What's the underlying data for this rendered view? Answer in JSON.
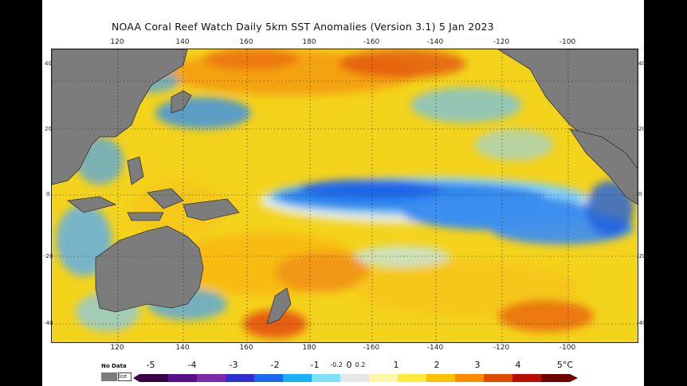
{
  "title": "NOAA Coral Reef Watch Daily 5km SST Anomalies (Version 3.1)   5 Jan 2023",
  "top_ticks": [
    "120",
    "140",
    "160",
    "180",
    "-160",
    "-140",
    "-120",
    "-100"
  ],
  "bottom_ticks": [
    "120",
    "140",
    "160",
    "180",
    "-160",
    "-140",
    "-120",
    "-100"
  ],
  "left_lat": [
    "40",
    "20",
    "0",
    "-20",
    "-40"
  ],
  "right_lat": [
    "40",
    "20",
    "0",
    "-20",
    "-40"
  ],
  "legend": {
    "nodata": "No Data",
    "ice": "Ice",
    "labels": [
      "-5",
      "-4",
      "-3",
      "-2",
      "-1",
      "-0.2",
      "0",
      "0.2",
      "1",
      "2",
      "3",
      "4",
      "5°C"
    ],
    "colors": [
      "#3a0046",
      "#5a0f8a",
      "#7a2aa8",
      "#2f2fd0",
      "#1a6af0",
      "#18b0f6",
      "#7fe0f8",
      "#e6e6e6",
      "#fff6a8",
      "#ffe93a",
      "#ffc000",
      "#ff8a00",
      "#e24a00",
      "#b80d00",
      "#6e0000"
    ]
  },
  "colors": {
    "land": "#7c7c7c",
    "warm_base": "#f3d51f",
    "cold_anomaly": "#2e8cf0",
    "hot_anomaly": "#e85a10"
  }
}
